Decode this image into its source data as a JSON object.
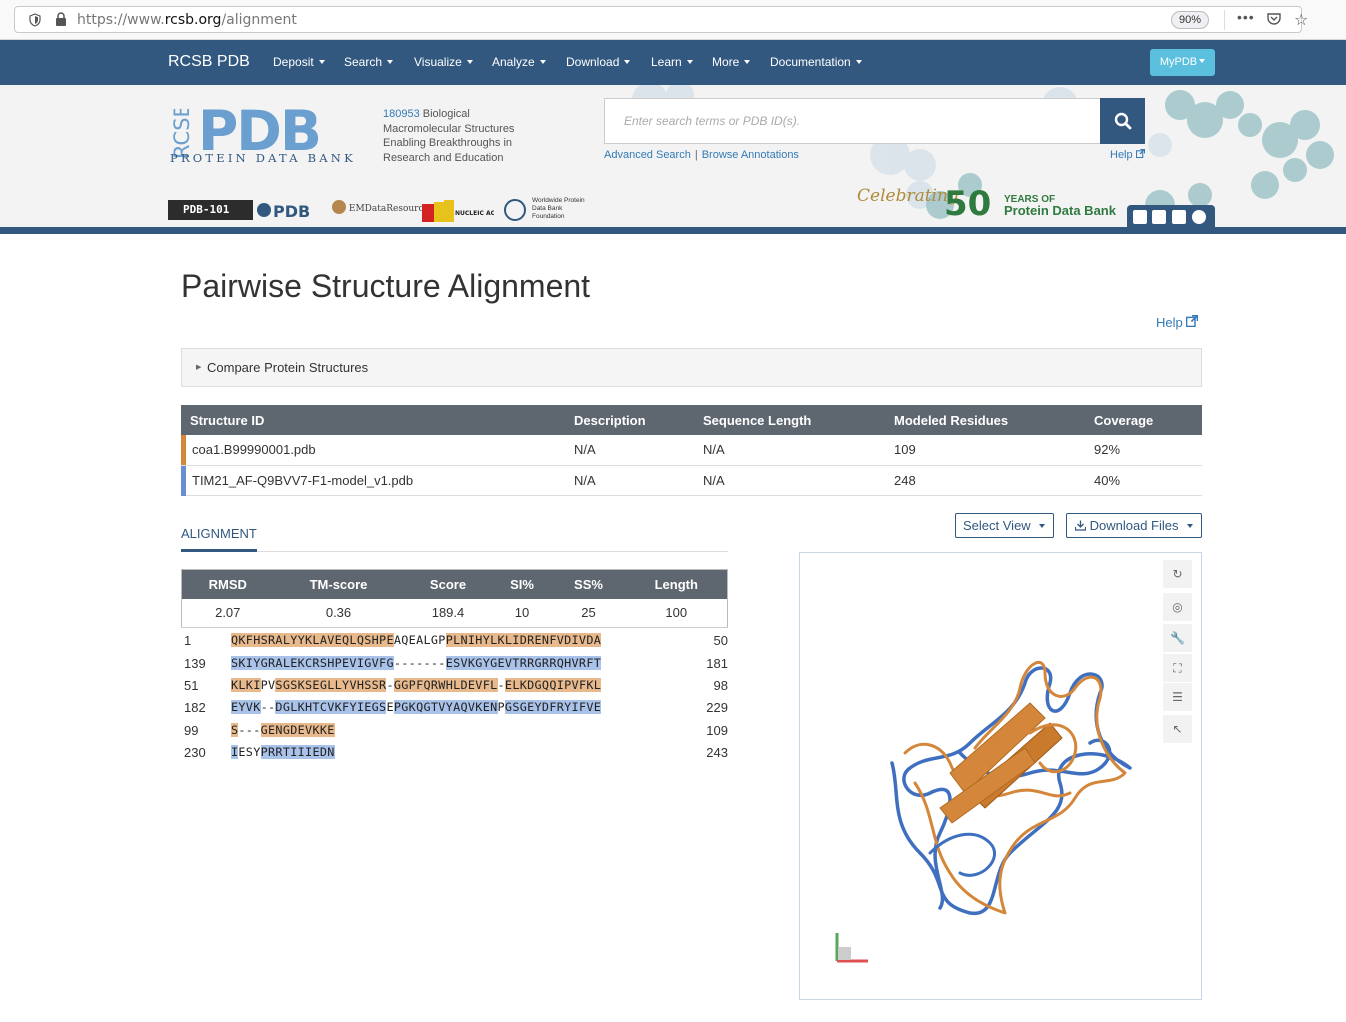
{
  "browser": {
    "url_prefix": "https://www.",
    "url_host": "rcsb.org",
    "url_path": "/alignment",
    "zoom": "90%"
  },
  "navbar": {
    "brand": "RCSB PDB",
    "items": [
      "Deposit",
      "Search",
      "Visualize",
      "Analyze",
      "Download",
      "Learn",
      "More",
      "Documentation"
    ],
    "mypdb": "MyPDB"
  },
  "header": {
    "logo_text": "PDB",
    "logo_sub": "PROTEIN DATA BANK",
    "logo_rcsb": "RCSB",
    "structure_count": "180953",
    "tagline": " Biological Macromolecular Structures Enabling Breakthroughs in Research and Education",
    "search_placeholder": "Enter search terms or PDB ID(s).",
    "advanced_search": "Advanced Search",
    "browse_annotations": "Browse Annotations",
    "help": "Help",
    "partner_pdb101": "PDB-101",
    "partner_emdr": "EMDataResource",
    "partner_wwf": "Worldwide Protein Data Bank Foundation",
    "celebrating": "Celebrating",
    "fifty": "50",
    "years_of": "YEARS OF",
    "years_pdb": "Protein Data Bank"
  },
  "main": {
    "title": "Pairwise Structure Alignment",
    "help": "Help",
    "compare_label": "Compare Protein Structures",
    "structures_table": {
      "headers": [
        "Structure ID",
        "Description",
        "Sequence Length",
        "Modeled Residues",
        "Coverage"
      ],
      "rows": [
        {
          "id": "coa1.B99990001.pdb",
          "description": "N/A",
          "length": "N/A",
          "modeled": "109",
          "coverage": "92%",
          "color": "#d4873a"
        },
        {
          "id": "TIM21_AF-Q9BVV7-F1-model_v1.pdb",
          "description": "N/A",
          "length": "N/A",
          "modeled": "248",
          "coverage": "40%",
          "color": "#6a8fcf"
        }
      ]
    },
    "select_view": "Select View",
    "download_files": "Download Files",
    "alignment_tab": "ALIGNMENT",
    "scores": {
      "headers": [
        "RMSD",
        "TM-score",
        "Score",
        "SI%",
        "SS%",
        "Length"
      ],
      "values": [
        "2.07",
        "0.36",
        "189.4",
        "10",
        "25",
        "100"
      ]
    },
    "sequence_rows": [
      {
        "start": "1",
        "end": "50",
        "chain": "o",
        "segments": [
          [
            "o",
            "QKFHSRALYYKLAVEQLQSHPE"
          ],
          [
            "g",
            "AQEALGP"
          ],
          [
            "o",
            "PLNIHYLKLIDRENFVDIVDA"
          ]
        ]
      },
      {
        "start": "139",
        "end": "181",
        "chain": "b",
        "segments": [
          [
            "b",
            "SKIYGRALEKCRSHPEVIGVFG"
          ],
          [
            "g",
            "-------"
          ],
          [
            "b",
            "ESVKGYGEVTRRGRRQHVRFT"
          ]
        ]
      },
      {
        "start": "51",
        "end": "98",
        "chain": "o",
        "segments": [
          [
            "o",
            "KLKI"
          ],
          [
            "g",
            "PV"
          ],
          [
            "o",
            "SGSKSEGLLYVHSSR"
          ],
          [
            "g",
            "-"
          ],
          [
            "o",
            "GGPFQRWHLDEVFL"
          ],
          [
            "g",
            "-"
          ],
          [
            "o",
            "ELKDGQQIPVFKL"
          ]
        ]
      },
      {
        "start": "182",
        "end": "229",
        "chain": "b",
        "segments": [
          [
            "b",
            "EYVK"
          ],
          [
            "g",
            "--"
          ],
          [
            "b",
            "DGLKHTCVKFYIEGS"
          ],
          [
            "g",
            "E"
          ],
          [
            "b",
            "PGKQGTVYAQVKEN"
          ],
          [
            "g",
            "P"
          ],
          [
            "b",
            "GSGEYDFRYIFVE"
          ]
        ]
      },
      {
        "start": "99",
        "end": "109",
        "chain": "o",
        "segments": [
          [
            "o",
            "S"
          ],
          [
            "g",
            "---"
          ],
          [
            "o",
            "GENGDEVKKE"
          ]
        ]
      },
      {
        "start": "230",
        "end": "243",
        "chain": "b",
        "segments": [
          [
            "b",
            "I"
          ],
          [
            "g",
            "ESY"
          ],
          [
            "b",
            "PRRTIIIEDN"
          ]
        ]
      }
    ],
    "viewer_tools": [
      "reset-icon",
      "screenshot-icon",
      "wrench-icon",
      "expand-icon",
      "sliders-icon",
      "pointer-icon"
    ]
  },
  "colors": {
    "navbar": "#325880",
    "chain_a": "#d4873a",
    "chain_b": "#3f6fbf",
    "aligned_a_bg": "#e8b98c",
    "aligned_b_bg": "#a9c2ea"
  }
}
